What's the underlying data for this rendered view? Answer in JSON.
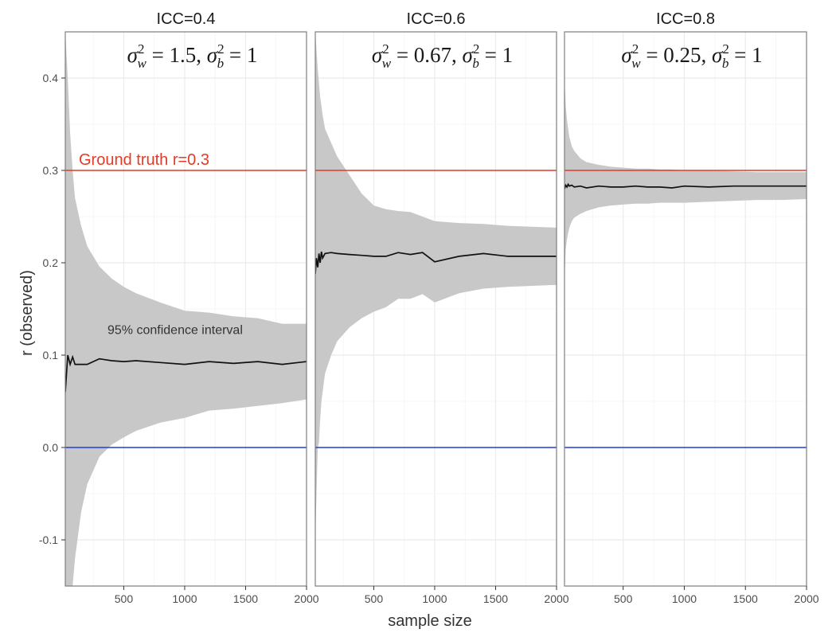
{
  "chart_data": {
    "type": "line",
    "xlabel": "sample size",
    "ylabel": "r (observed)",
    "xlim": [
      20,
      2000
    ],
    "ylim": [
      -0.15,
      0.45
    ],
    "x_ticks": [
      500,
      1000,
      1500,
      2000
    ],
    "x_tick_labels": [
      "500",
      "1000",
      "1500",
      "2000"
    ],
    "y_ticks": [
      -0.1,
      0.0,
      0.1,
      0.2,
      0.3,
      0.4
    ],
    "y_tick_labels": [
      "-0.1",
      "0.0",
      "0.1",
      "0.2",
      "0.3",
      "0.4"
    ],
    "grid": true,
    "reference_lines": [
      {
        "y": 0.3,
        "color": "#e03c28"
      },
      {
        "y": 0.0,
        "color": "#1f3fd6"
      }
    ],
    "colors": {
      "line": "#111111",
      "band": "#c8c8c8",
      "ground_truth": "#e03c28",
      "zero": "#1f3fd6",
      "grid": "#ebebeb",
      "border": "#7f7f7f"
    },
    "annotations": {
      "ground_truth": "Ground truth r=0.3",
      "ci": "95% confidence interval"
    },
    "facets": [
      {
        "title": "ICC=0.4",
        "formula": {
          "sigma": "σ",
          "w_sub": "w",
          "w_sup": "2",
          "w_value": " = 1.5, ",
          "b_sub": "b",
          "b_sup": "2",
          "b_value": " = 1"
        },
        "x": [
          20,
          40,
          60,
          80,
          100,
          150,
          200,
          300,
          400,
          500,
          600,
          800,
          1000,
          1200,
          1400,
          1600,
          1800,
          2000
        ],
        "mean": [
          0.06,
          0.1,
          0.09,
          0.098,
          0.09,
          0.09,
          0.09,
          0.096,
          0.094,
          0.093,
          0.094,
          0.092,
          0.09,
          0.093,
          0.091,
          0.093,
          0.09,
          0.093
        ],
        "upper": [
          0.45,
          0.4,
          0.34,
          0.3,
          0.27,
          0.24,
          0.218,
          0.196,
          0.183,
          0.174,
          0.167,
          0.157,
          0.148,
          0.146,
          0.142,
          0.14,
          0.134,
          0.134
        ],
        "lower": [
          -0.18,
          -0.2,
          -0.17,
          -0.15,
          -0.12,
          -0.07,
          -0.04,
          -0.01,
          0.003,
          0.011,
          0.018,
          0.027,
          0.032,
          0.04,
          0.042,
          0.045,
          0.048,
          0.052
        ]
      },
      {
        "title": "ICC=0.6",
        "formula": {
          "sigma": "σ",
          "w_sub": "w",
          "w_sup": "2",
          "w_value": " = 0.67, ",
          "b_sub": "b",
          "b_sup": "2",
          "b_value": " = 1"
        },
        "x": [
          20,
          30,
          40,
          50,
          60,
          70,
          80,
          100,
          150,
          200,
          300,
          400,
          500,
          600,
          700,
          800,
          900,
          1000,
          1200,
          1400,
          1600,
          2000
        ],
        "mean": [
          0.188,
          0.205,
          0.195,
          0.21,
          0.2,
          0.212,
          0.205,
          0.21,
          0.211,
          0.21,
          0.209,
          0.208,
          0.207,
          0.207,
          0.211,
          0.209,
          0.211,
          0.201,
          0.207,
          0.21,
          0.207,
          0.207
        ],
        "upper": [
          0.45,
          0.43,
          0.41,
          0.395,
          0.38,
          0.37,
          0.36,
          0.345,
          0.33,
          0.315,
          0.295,
          0.275,
          0.262,
          0.258,
          0.256,
          0.255,
          0.25,
          0.245,
          0.243,
          0.242,
          0.24,
          0.238
        ],
        "lower": [
          -0.1,
          -0.05,
          0.0,
          0.005,
          0.03,
          0.05,
          0.06,
          0.08,
          0.1,
          0.115,
          0.13,
          0.14,
          0.147,
          0.152,
          0.161,
          0.161,
          0.166,
          0.157,
          0.167,
          0.172,
          0.174,
          0.176
        ]
      },
      {
        "title": "ICC=0.8",
        "formula": {
          "sigma": "σ",
          "w_sub": "w",
          "w_sup": "2",
          "w_value": " = 0.25, ",
          "b_sub": "b",
          "b_sup": "2",
          "b_value": " = 1"
        },
        "x": [
          20,
          30,
          40,
          50,
          60,
          80,
          100,
          150,
          200,
          300,
          400,
          500,
          600,
          700,
          800,
          900,
          1000,
          1200,
          1400,
          1600,
          1800,
          2000
        ],
        "mean": [
          0.28,
          0.284,
          0.282,
          0.285,
          0.283,
          0.284,
          0.282,
          0.283,
          0.281,
          0.283,
          0.282,
          0.282,
          0.283,
          0.282,
          0.282,
          0.281,
          0.283,
          0.282,
          0.283,
          0.283,
          0.283,
          0.283
        ],
        "upper": [
          0.4,
          0.37,
          0.355,
          0.345,
          0.336,
          0.326,
          0.321,
          0.313,
          0.309,
          0.306,
          0.304,
          0.303,
          0.302,
          0.302,
          0.301,
          0.301,
          0.3,
          0.3,
          0.299,
          0.298,
          0.298,
          0.298
        ],
        "lower": [
          0.18,
          0.215,
          0.225,
          0.232,
          0.238,
          0.245,
          0.249,
          0.253,
          0.256,
          0.26,
          0.262,
          0.263,
          0.264,
          0.264,
          0.265,
          0.265,
          0.265,
          0.266,
          0.267,
          0.268,
          0.268,
          0.269
        ]
      }
    ]
  }
}
